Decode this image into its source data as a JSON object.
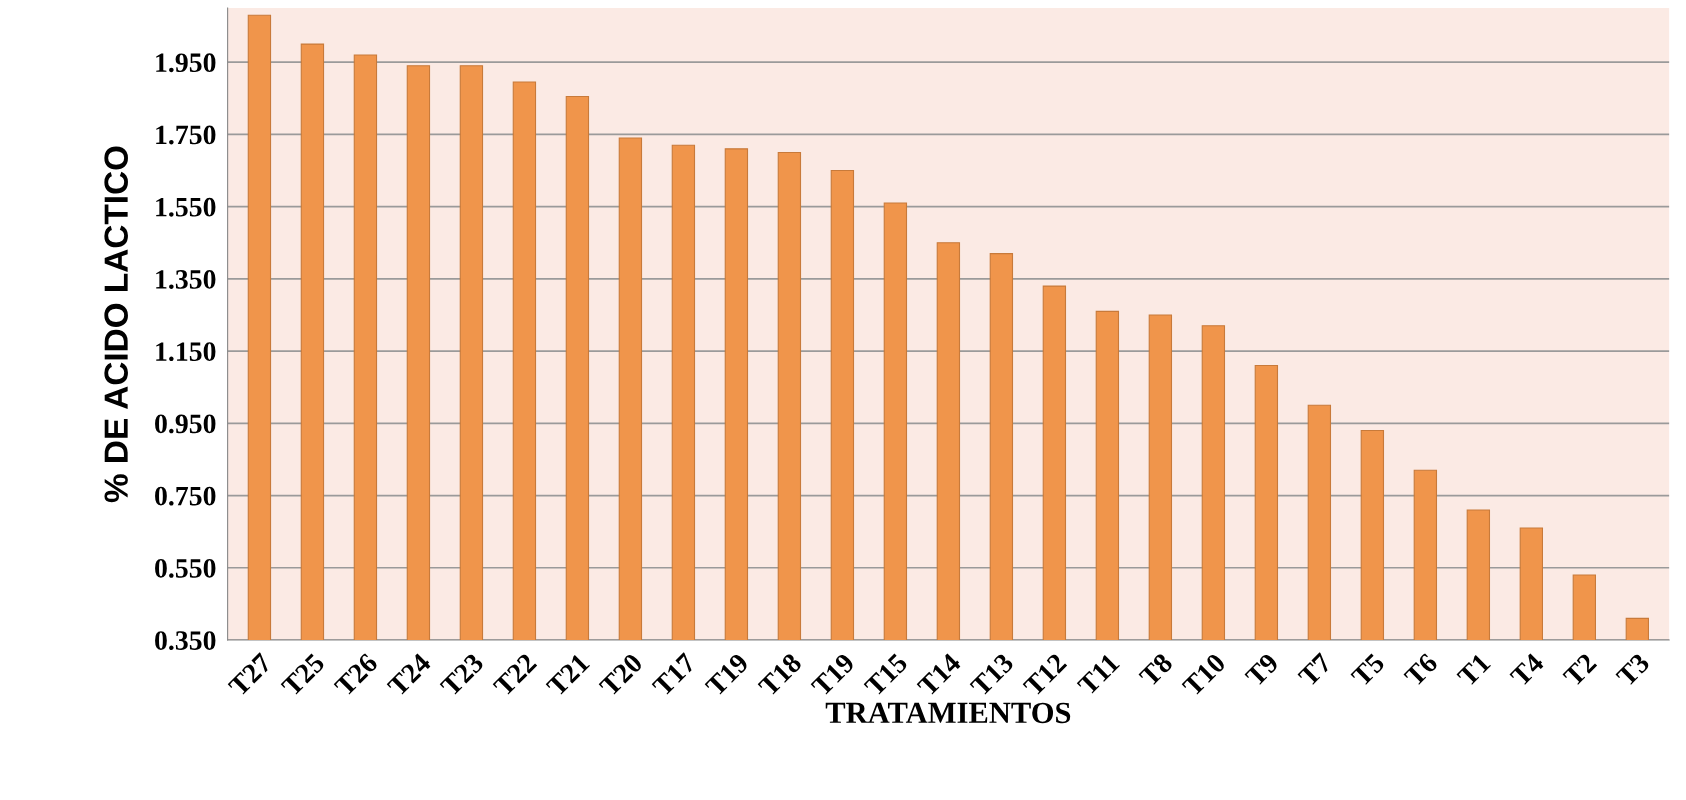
{
  "chart_data": {
    "type": "bar",
    "xlabel": "TRATAMIENTOS",
    "ylabel": "% DE ACIDO LACTICO",
    "categories": [
      "T27",
      "T25",
      "T26",
      "T24",
      "T23",
      "T22",
      "T21",
      "T20",
      "T17",
      "T19",
      "T18",
      "T19",
      "T15",
      "T14",
      "T13",
      "T12",
      "T11",
      "T8",
      "T10",
      "T9",
      "T7",
      "T5",
      "T6",
      "T1",
      "T4",
      "T2",
      "T3"
    ],
    "values": [
      2.08,
      2.0,
      1.97,
      1.94,
      1.94,
      1.895,
      1.855,
      1.74,
      1.72,
      1.71,
      1.7,
      1.65,
      1.56,
      1.45,
      1.42,
      1.33,
      1.26,
      1.25,
      1.22,
      1.11,
      1.0,
      0.93,
      0.82,
      0.71,
      0.66,
      0.53,
      0.41
    ],
    "color": "#f0954b",
    "ylim": [
      0.35,
      2.1
    ],
    "yticks": [
      {
        "value": 0.35,
        "label": "0.350"
      },
      {
        "value": 0.55,
        "label": "0.550"
      },
      {
        "value": 0.75,
        "label": "0.750"
      },
      {
        "value": 0.95,
        "label": "0.950"
      },
      {
        "value": 1.15,
        "label": "1.150"
      },
      {
        "value": 1.35,
        "label": "1.350"
      },
      {
        "value": 1.55,
        "label": "1.550"
      },
      {
        "value": 1.75,
        "label": "1.750"
      },
      {
        "value": 1.95,
        "label": "1.950"
      }
    ],
    "grid": "y"
  }
}
